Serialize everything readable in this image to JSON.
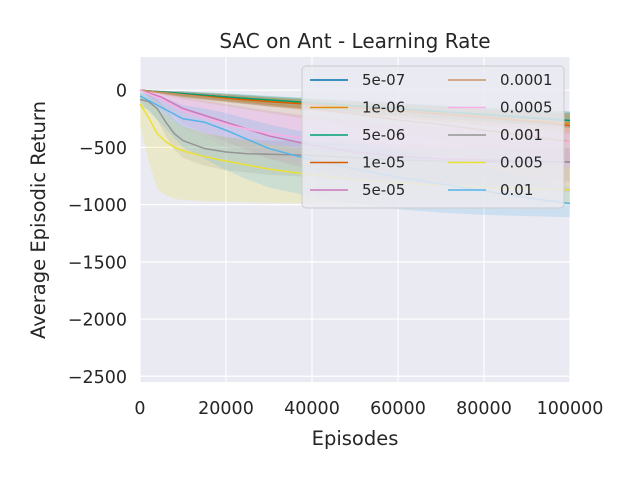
{
  "chart_data": {
    "type": "line",
    "title": "SAC on Ant - Learning Rate",
    "xlabel": "Episodes",
    "ylabel": "Average Episodic Return",
    "xlim": [
      0,
      100000
    ],
    "ylim": [
      -2550,
      290
    ],
    "xticks": [
      0,
      20000,
      40000,
      60000,
      80000,
      100000
    ],
    "xtick_labels": [
      "0",
      "20000",
      "40000",
      "60000",
      "80000",
      "100000"
    ],
    "yticks": [
      0,
      -500,
      -1000,
      -1500,
      -2000,
      -2500
    ],
    "ytick_labels": [
      "0",
      "−500",
      "−1000",
      "−1500",
      "−2000",
      "−2500"
    ],
    "grid": true,
    "legend_position": "upper-right",
    "legend_columns": 2,
    "series": [
      {
        "name": "5e-07",
        "color": "#0173b2",
        "x": [
          0,
          10000,
          20000,
          30000,
          40000,
          50000,
          60000,
          70000,
          80000,
          90000,
          100000
        ],
        "values": [
          0,
          -30,
          -60,
          -90,
          -115,
          -140,
          -165,
          -190,
          -215,
          -240,
          -265
        ],
        "band_upper": [
          0,
          -10,
          -30,
          -55,
          -75,
          -95,
          -115,
          -135,
          -155,
          -170,
          -185
        ],
        "band_lower": [
          0,
          -60,
          -100,
          -140,
          -170,
          -200,
          -225,
          -250,
          -275,
          -300,
          -330
        ]
      },
      {
        "name": "1e-06",
        "color": "#de8f05",
        "x": [
          0,
          10000,
          20000,
          30000,
          40000,
          50000,
          60000,
          70000,
          80000,
          90000,
          100000
        ],
        "values": [
          0,
          -35,
          -65,
          -95,
          -120,
          -150,
          -175,
          -200,
          -230,
          -260,
          -290
        ],
        "band_upper": [
          0,
          -15,
          -35,
          -60,
          -80,
          -100,
          -120,
          -140,
          -160,
          -180,
          -200
        ],
        "band_lower": [
          0,
          -60,
          -100,
          -140,
          -175,
          -210,
          -240,
          -270,
          -300,
          -330,
          -360
        ]
      },
      {
        "name": "5e-06",
        "color": "#029e73",
        "x": [
          0,
          10000,
          20000,
          30000,
          40000,
          50000,
          60000,
          70000,
          80000,
          90000,
          100000
        ],
        "values": [
          0,
          -30,
          -60,
          -85,
          -110,
          -135,
          -160,
          -185,
          -210,
          -235,
          -265
        ],
        "band_upper": [
          0,
          -10,
          -30,
          -50,
          -70,
          -90,
          -110,
          -130,
          -150,
          -170,
          -190
        ],
        "band_lower": [
          0,
          -55,
          -95,
          -130,
          -160,
          -190,
          -220,
          -245,
          -270,
          -300,
          -330
        ]
      },
      {
        "name": "1e-05",
        "color": "#d55e00",
        "x": [
          0,
          10000,
          20000,
          30000,
          40000,
          50000,
          60000,
          70000,
          80000,
          90000,
          100000
        ],
        "values": [
          0,
          -40,
          -70,
          -100,
          -125,
          -155,
          -180,
          -210,
          -240,
          -270,
          -310
        ],
        "band_upper": [
          0,
          -20,
          -40,
          -65,
          -85,
          -105,
          -125,
          -145,
          -165,
          -185,
          -205
        ],
        "band_lower": [
          0,
          -65,
          -105,
          -145,
          -180,
          -215,
          -245,
          -280,
          -310,
          -345,
          -380
        ]
      },
      {
        "name": "5e-05",
        "color": "#cc78bc",
        "x": [
          0,
          5000,
          10000,
          20000,
          30000,
          40000,
          50000,
          60000,
          70000,
          80000,
          90000,
          100000
        ],
        "values": [
          0,
          -60,
          -160,
          -280,
          -400,
          -480,
          -540,
          -580,
          -600,
          -610,
          -620,
          -630
        ],
        "band_upper": [
          0,
          -20,
          -60,
          -120,
          -180,
          -230,
          -270,
          -300,
          -320,
          -340,
          -350,
          -360
        ],
        "band_lower": [
          0,
          -130,
          -300,
          -450,
          -600,
          -700,
          -760,
          -800,
          -830,
          -850,
          -870,
          -890
        ]
      },
      {
        "name": "0.0001",
        "color": "#ca9161",
        "x": [
          0,
          10000,
          20000,
          30000,
          40000,
          50000,
          60000,
          70000,
          80000,
          90000,
          100000
        ],
        "values": [
          0,
          -40,
          -80,
          -120,
          -160,
          -210,
          -260,
          -300,
          -350,
          -400,
          -450
        ],
        "band_upper": [
          0,
          -15,
          -40,
          -70,
          -90,
          -120,
          -150,
          -180,
          -210,
          -240,
          -270
        ],
        "band_lower": [
          0,
          -80,
          -140,
          -200,
          -260,
          -320,
          -380,
          -440,
          -500,
          -560,
          -620
        ]
      },
      {
        "name": "0.0005",
        "color": "#fbafe4",
        "x": [
          0,
          5000,
          10000,
          20000,
          30000,
          40000,
          50000,
          60000,
          70000,
          80000,
          90000,
          100000
        ],
        "values": [
          0,
          -80,
          -180,
          -300,
          -380,
          -430,
          -460,
          -480,
          -490,
          -490,
          -470,
          -450
        ],
        "band_upper": [
          0,
          -30,
          -70,
          -140,
          -200,
          -240,
          -270,
          -290,
          -300,
          -300,
          -290,
          -280
        ],
        "band_lower": [
          0,
          -170,
          -330,
          -500,
          -600,
          -660,
          -700,
          -720,
          -730,
          -730,
          -720,
          -700
        ]
      },
      {
        "name": "0.001",
        "color": "#949494",
        "x": [
          0,
          2000,
          4000,
          6000,
          8000,
          10000,
          15000,
          20000,
          25000,
          30000,
          40000,
          50000,
          60000,
          70000,
          80000,
          90000,
          100000
        ],
        "values": [
          -80,
          -100,
          -160,
          -280,
          -380,
          -440,
          -510,
          -540,
          -555,
          -560,
          -570,
          -590,
          -610,
          -620,
          -625,
          -625,
          -625
        ],
        "band_upper": [
          -20,
          -40,
          -80,
          -160,
          -250,
          -310,
          -380,
          -410,
          -430,
          -440,
          -450,
          -460,
          -470,
          -480,
          -490,
          -495,
          -500
        ],
        "band_lower": [
          -150,
          -170,
          -260,
          -400,
          -520,
          -590,
          -660,
          -700,
          -720,
          -740,
          -760,
          -780,
          -790,
          -800,
          -800,
          -800,
          -800
        ]
      },
      {
        "name": "0.005",
        "color": "#ece133",
        "x": [
          0,
          2000,
          4000,
          6000,
          8000,
          10000,
          15000,
          20000,
          30000,
          40000,
          50000,
          60000,
          70000,
          80000,
          90000,
          100000
        ],
        "values": [
          -120,
          -240,
          -380,
          -450,
          -500,
          -530,
          -580,
          -620,
          -690,
          -740,
          -780,
          -810,
          -830,
          -850,
          -860,
          -870
        ],
        "band_upper": [
          -40,
          -90,
          -160,
          -220,
          -280,
          -320,
          -370,
          -410,
          -470,
          -520,
          -560,
          -600,
          -630,
          -650,
          -660,
          -670
        ],
        "band_lower": [
          -300,
          -620,
          -860,
          -920,
          -950,
          -960,
          -970,
          -975,
          -985,
          -990,
          -995,
          -1000,
          -1000,
          -1000,
          -1000,
          -1000
        ]
      },
      {
        "name": "0.01",
        "color": "#56b4e9",
        "x": [
          0,
          5000,
          10000,
          15000,
          20000,
          25000,
          30000,
          40000,
          50000,
          60000,
          70000,
          80000,
          90000,
          100000
        ],
        "values": [
          -50,
          -150,
          -250,
          -280,
          -350,
          -430,
          -510,
          -610,
          -690,
          -760,
          -820,
          -880,
          -940,
          -990
        ],
        "band_upper": [
          0,
          -60,
          -130,
          -160,
          -200,
          -250,
          -300,
          -380,
          -450,
          -520,
          -600,
          -680,
          -760,
          -850
        ],
        "band_lower": [
          -100,
          -300,
          -500,
          -600,
          -700,
          -780,
          -850,
          -930,
          -990,
          -1040,
          -1070,
          -1090,
          -1100,
          -1110
        ]
      }
    ]
  }
}
